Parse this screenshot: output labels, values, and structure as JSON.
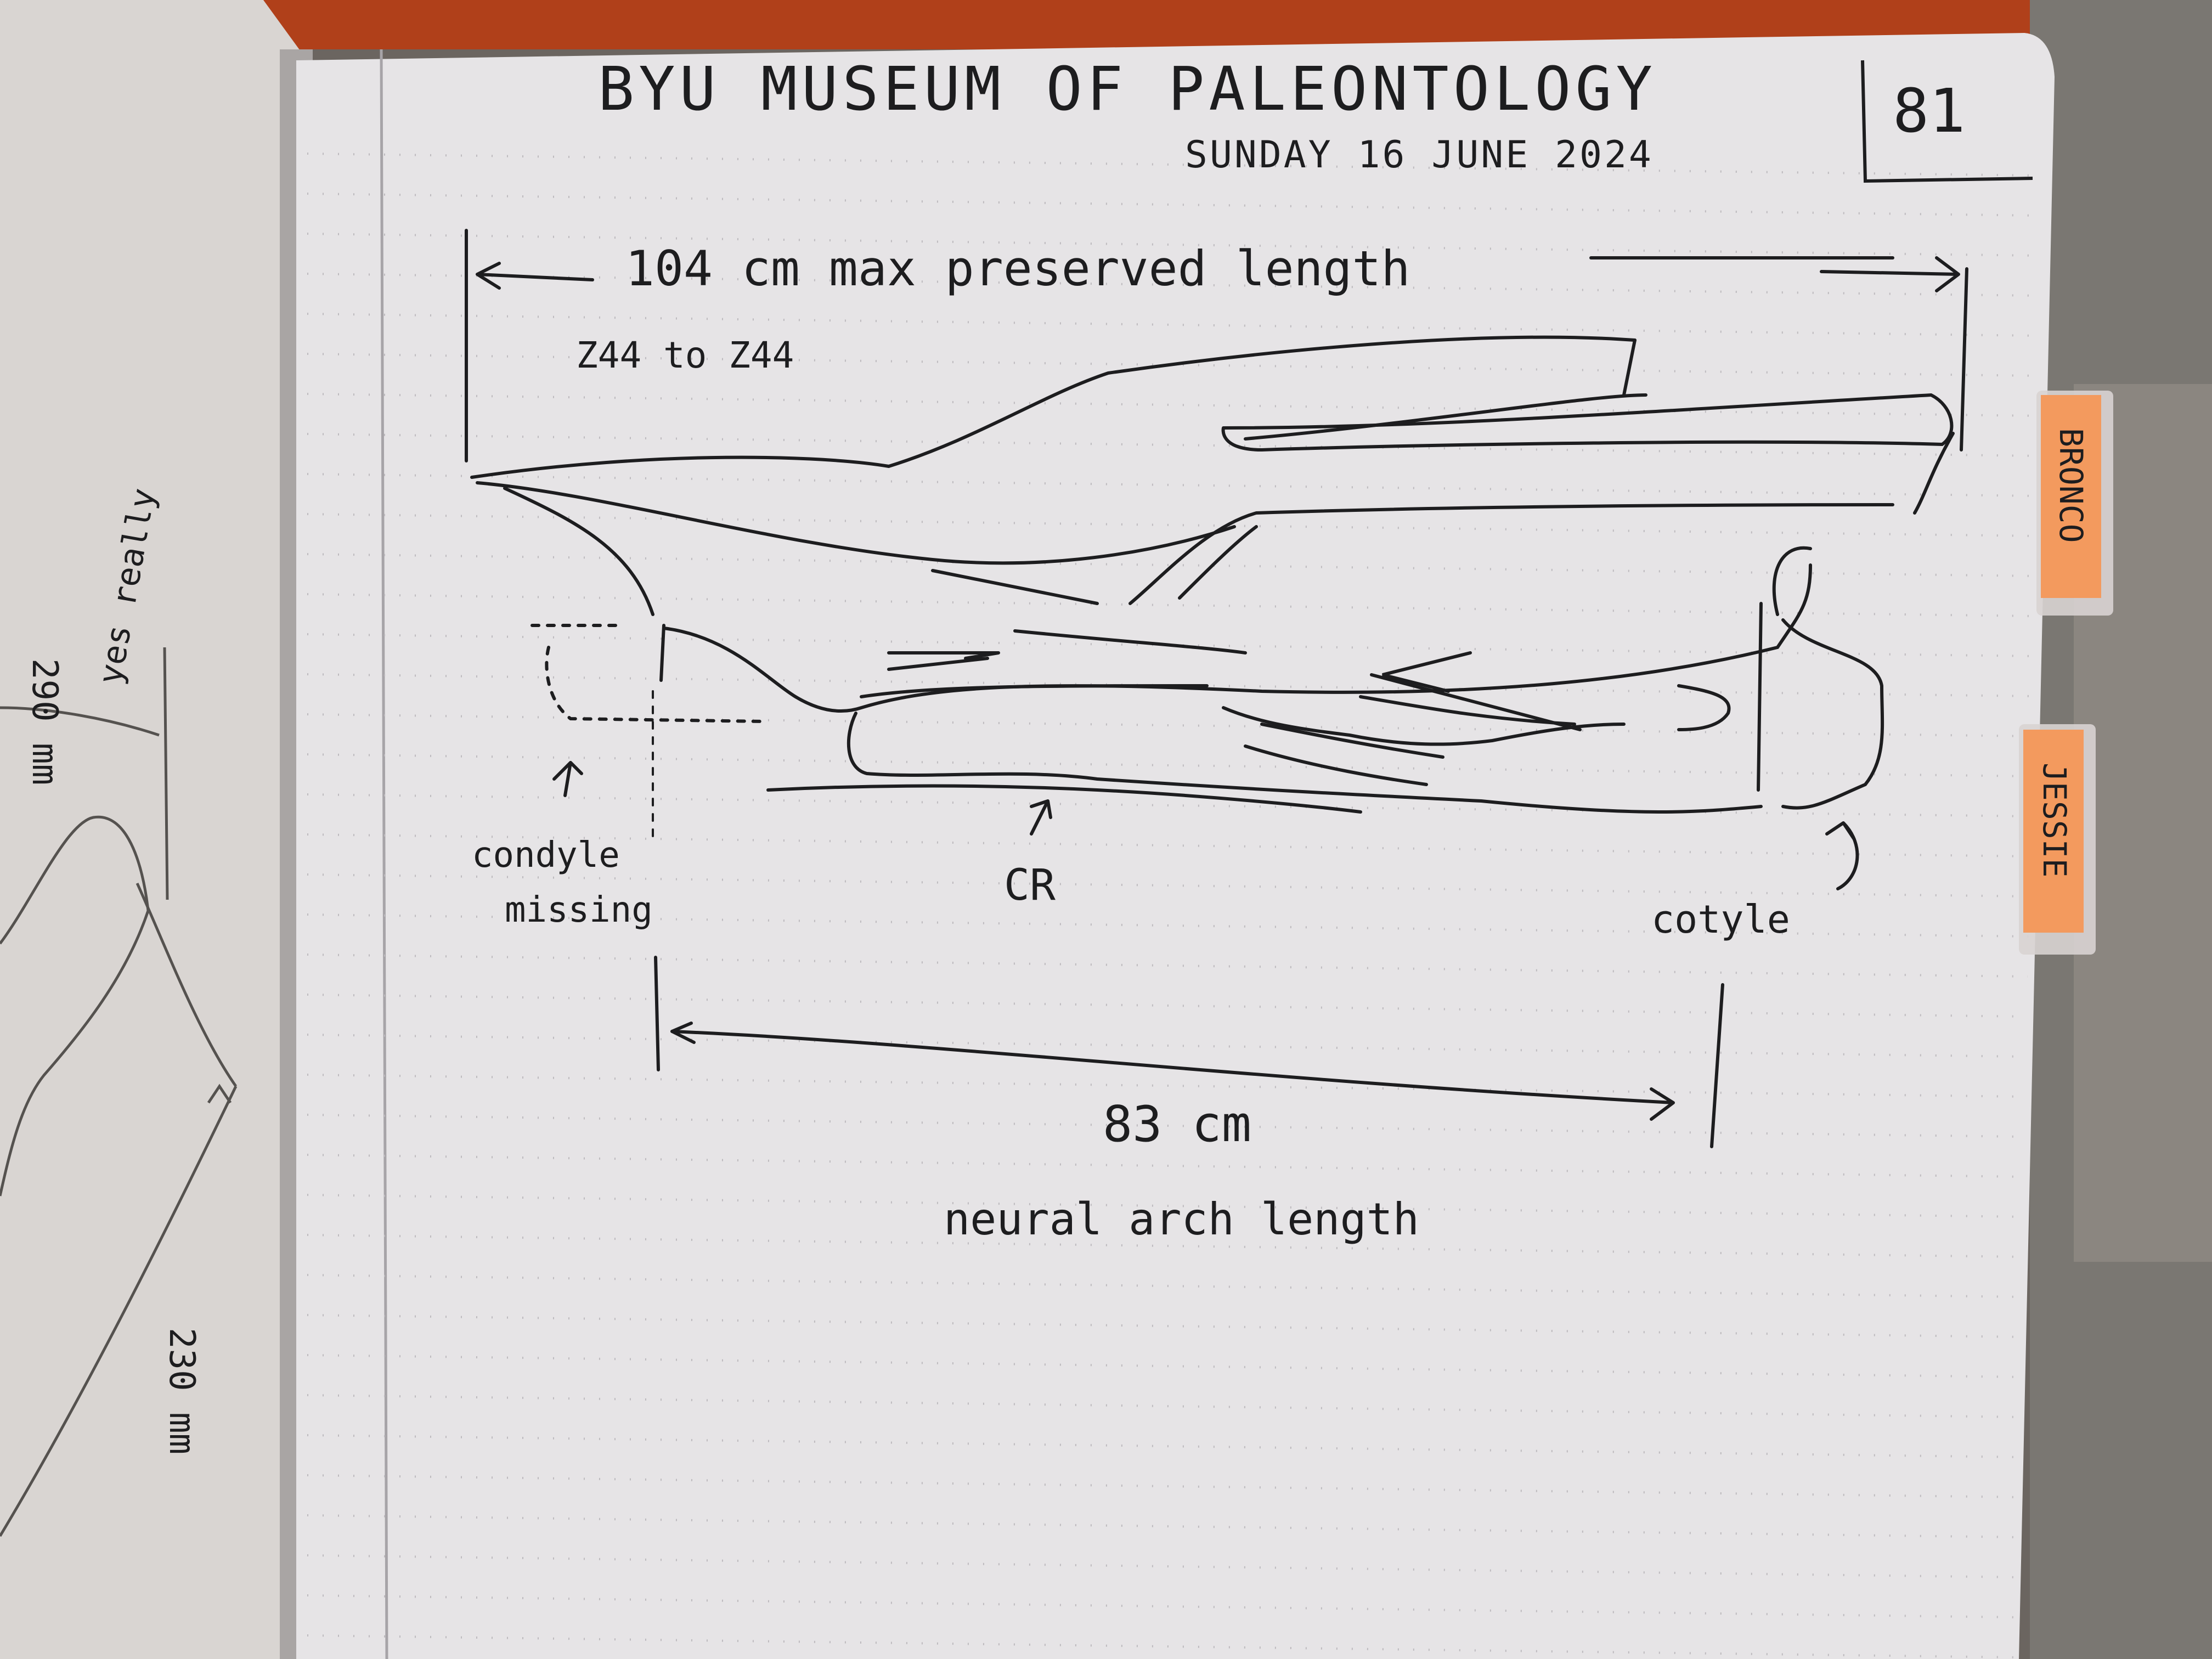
{
  "notebook": {
    "header": {
      "title": "BYU MUSEUM OF PALEONTOLOGY",
      "date": "SUNDAY 16 JUNE 2024",
      "page_number": "81"
    },
    "sketch": {
      "max_length_label": "104 cm max preserved length",
      "range_label": "Z44 to Z44",
      "condyle_label_line1": "condyle",
      "condyle_label_line2": "missing",
      "cr_label": "CR",
      "cotyle_label": "cotyle",
      "neural_arch_value": "83 cm",
      "neural_arch_label": "neural arch length"
    },
    "left_page": {
      "note_top": "290 mm",
      "note_top2": "yes really",
      "note_bottom": "230 mm"
    },
    "tabs": [
      {
        "label": "BRONCO"
      },
      {
        "label": "JESSIE"
      }
    ]
  },
  "colors": {
    "paper": "#e6e4e6",
    "ink": "#1d1d1f",
    "rule_line": "#b9b6ba",
    "tab_orange": "#f39a5e",
    "background_warehouse": "#5a5550"
  }
}
